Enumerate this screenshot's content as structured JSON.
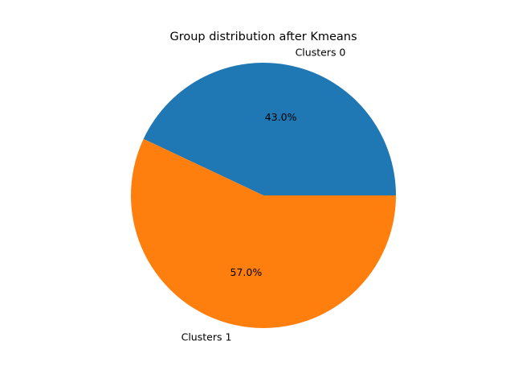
{
  "chart_data": {
    "type": "pie",
    "title": "Group distribution after Kmeans",
    "labels": [
      "Clusters 0",
      "Clusters 1"
    ],
    "values": [
      43.0,
      57.0
    ],
    "autopct": [
      "43.0%",
      "57.0%"
    ],
    "colors": [
      "#1f77b4",
      "#ff7f0e"
    ],
    "start_angle_deg": 0,
    "direction": "counterclockwise"
  }
}
